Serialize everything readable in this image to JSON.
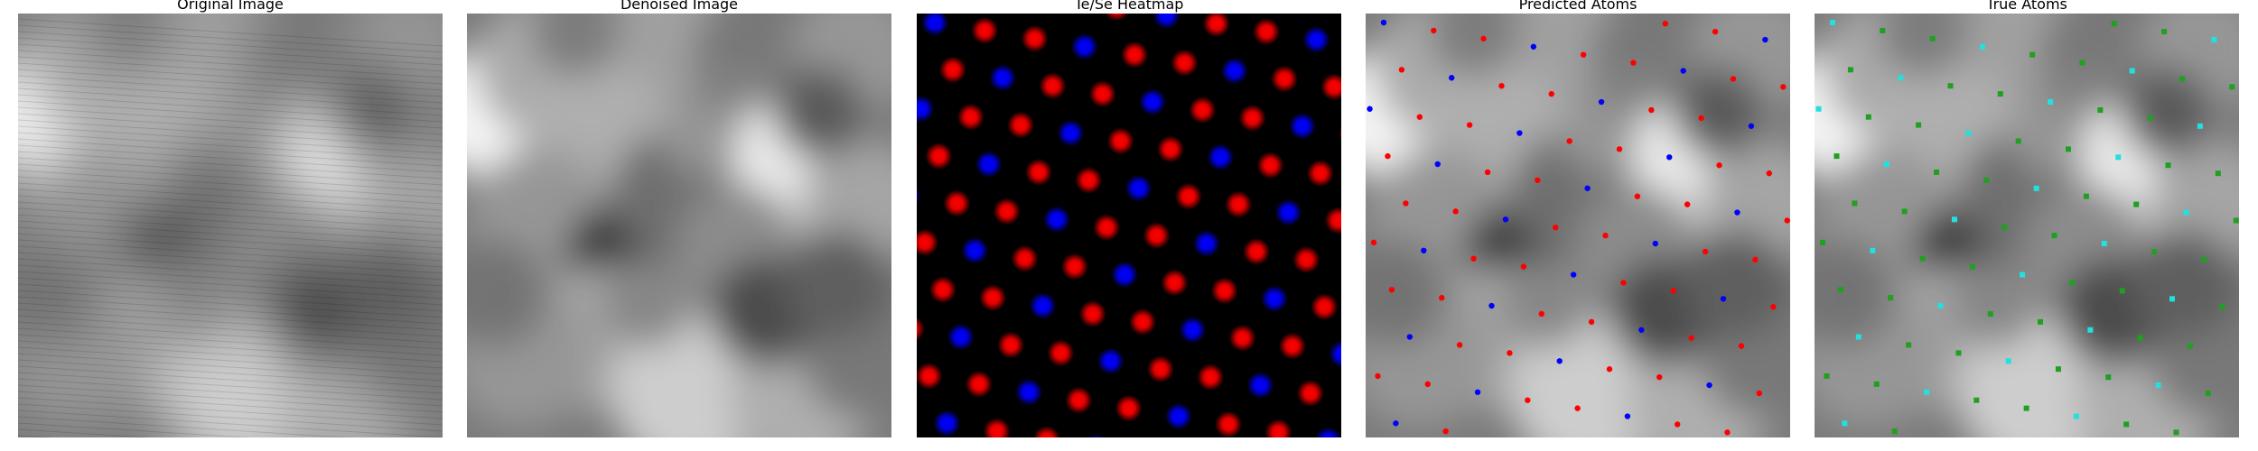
{
  "figure": {
    "panels": [
      {
        "id": "original",
        "title": "Original Image"
      },
      {
        "id": "denoised",
        "title": "Denoised Image"
      },
      {
        "id": "heatmap",
        "title": "Te/Se Heatmap"
      },
      {
        "id": "predicted",
        "title": "Predicted Atoms"
      },
      {
        "id": "true",
        "title": "True Atoms"
      }
    ]
  },
  "colors": {
    "te_atom": "#ff0000",
    "se_atom": "#0000ff",
    "true_te_atom": "#1fa01f",
    "true_se_atom": "#22e0e0",
    "heatmap_background": "#000000"
  }
}
